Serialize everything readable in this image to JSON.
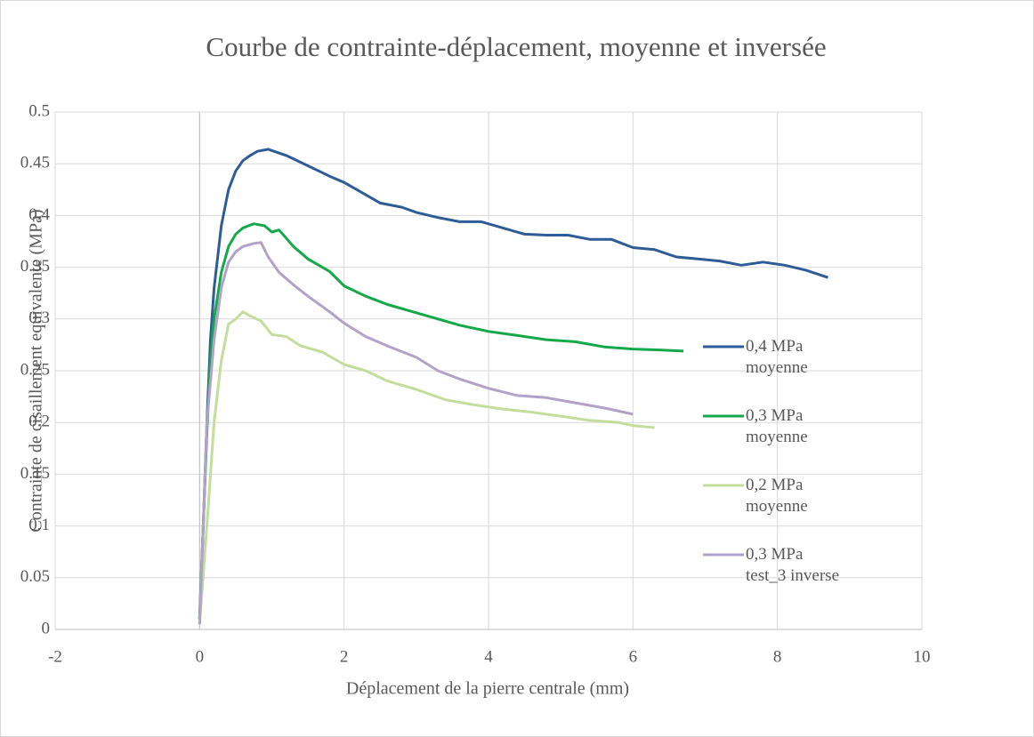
{
  "chart_data": {
    "type": "line",
    "title": "Courbe de contrainte-déplacement, moyenne et inversée",
    "x_label": "Déplacement de la pierre centrale (mm)",
    "y_label": "Contrainte de cisaillement equivalente (MPa)",
    "xlim": [
      -2,
      10
    ],
    "xticks": [
      -2,
      0,
      2,
      4,
      6,
      8,
      10
    ],
    "ylim": [
      0,
      0.5
    ],
    "yticks": [
      0,
      0.05,
      0.1,
      0.15,
      0.2,
      0.25,
      0.3,
      0.35,
      0.4,
      0.45,
      0.5
    ],
    "grid": true,
    "legend": "right",
    "series": [
      {
        "name": "0,4 MPa moyenne",
        "color": "#2e5c96",
        "x": [
          0,
          0.05,
          0.1,
          0.15,
          0.2,
          0.3,
          0.4,
          0.5,
          0.6,
          0.7,
          0.8,
          0.95,
          1.2,
          1.5,
          1.8,
          2.0,
          2.3,
          2.5,
          2.8,
          3.0,
          3.3,
          3.6,
          3.9,
          4.2,
          4.5,
          4.8,
          5.1,
          5.4,
          5.7,
          6.0,
          6.3,
          6.6,
          6.9,
          7.2,
          7.5,
          7.8,
          8.1,
          8.4,
          8.7
        ],
        "values": [
          0.01,
          0.1,
          0.2,
          0.28,
          0.33,
          0.39,
          0.425,
          0.443,
          0.453,
          0.458,
          0.462,
          0.464,
          0.458,
          0.448,
          0.438,
          0.432,
          0.42,
          0.412,
          0.408,
          0.403,
          0.398,
          0.394,
          0.394,
          0.388,
          0.382,
          0.381,
          0.381,
          0.377,
          0.377,
          0.369,
          0.367,
          0.36,
          0.358,
          0.356,
          0.352,
          0.355,
          0.352,
          0.347,
          0.34
        ]
      },
      {
        "name": "0,3 MPa moyenne",
        "color": "#15a84b",
        "x": [
          0,
          0.05,
          0.1,
          0.15,
          0.2,
          0.3,
          0.4,
          0.5,
          0.6,
          0.75,
          0.9,
          1.0,
          1.1,
          1.3,
          1.5,
          1.8,
          2.0,
          2.3,
          2.6,
          3.0,
          3.3,
          3.6,
          4.0,
          4.4,
          4.8,
          5.2,
          5.6,
          6.0,
          6.4,
          6.7
        ],
        "values": [
          0.01,
          0.1,
          0.19,
          0.26,
          0.3,
          0.345,
          0.37,
          0.382,
          0.388,
          0.392,
          0.39,
          0.384,
          0.386,
          0.37,
          0.358,
          0.346,
          0.332,
          0.322,
          0.314,
          0.306,
          0.3,
          0.294,
          0.288,
          0.284,
          0.28,
          0.278,
          0.273,
          0.271,
          0.27,
          0.269
        ]
      },
      {
        "name": "0,2 MPa moyenne",
        "color": "#c4dc9c",
        "x": [
          0,
          0.1,
          0.2,
          0.3,
          0.4,
          0.5,
          0.6,
          0.7,
          0.85,
          1.0,
          1.2,
          1.4,
          1.7,
          2.0,
          2.3,
          2.6,
          3.0,
          3.4,
          3.8,
          4.2,
          4.6,
          5.0,
          5.4,
          5.8,
          6.0,
          6.3
        ],
        "values": [
          0.005,
          0.1,
          0.2,
          0.26,
          0.295,
          0.3,
          0.307,
          0.303,
          0.298,
          0.285,
          0.283,
          0.274,
          0.268,
          0.256,
          0.25,
          0.24,
          0.232,
          0.222,
          0.217,
          0.213,
          0.21,
          0.206,
          0.202,
          0.2,
          0.197,
          0.195
        ]
      },
      {
        "name": "0,3 MPa test_3 inverse",
        "color": "#b3a2c7",
        "x": [
          0,
          0.05,
          0.1,
          0.2,
          0.3,
          0.4,
          0.5,
          0.6,
          0.75,
          0.85,
          0.95,
          1.1,
          1.3,
          1.5,
          1.8,
          2.0,
          2.3,
          2.6,
          3.0,
          3.3,
          3.6,
          4.0,
          4.4,
          4.8,
          5.2,
          5.6,
          6.0
        ],
        "values": [
          0.005,
          0.1,
          0.2,
          0.28,
          0.33,
          0.355,
          0.365,
          0.37,
          0.373,
          0.374,
          0.36,
          0.345,
          0.333,
          0.322,
          0.307,
          0.296,
          0.283,
          0.274,
          0.263,
          0.25,
          0.242,
          0.233,
          0.226,
          0.224,
          0.219,
          0.214,
          0.208
        ]
      }
    ]
  }
}
